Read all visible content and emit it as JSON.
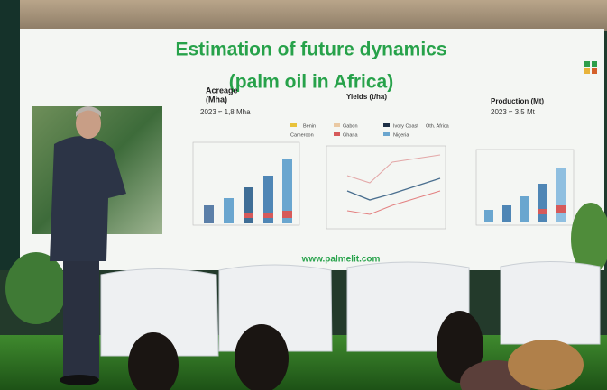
{
  "slide": {
    "title": "Estimation of future dynamics",
    "subtitle": "(palm oil in Africa)",
    "panels": [
      {
        "title": "Acreage",
        "unit": "(Mha)",
        "note": "2023 ≈ 1,8 Mha"
      },
      {
        "title": "Yields (t/ha)"
      },
      {
        "title": "Production (Mt)",
        "note": "2023 ≈ 3,5 Mt"
      }
    ],
    "legend": [
      "Benin",
      "Cameroon",
      "Gabon",
      "Ghana",
      "Ivory Coast",
      "Nigeria",
      "Oth. Africa"
    ],
    "url": "www.palmelit.com"
  }
}
